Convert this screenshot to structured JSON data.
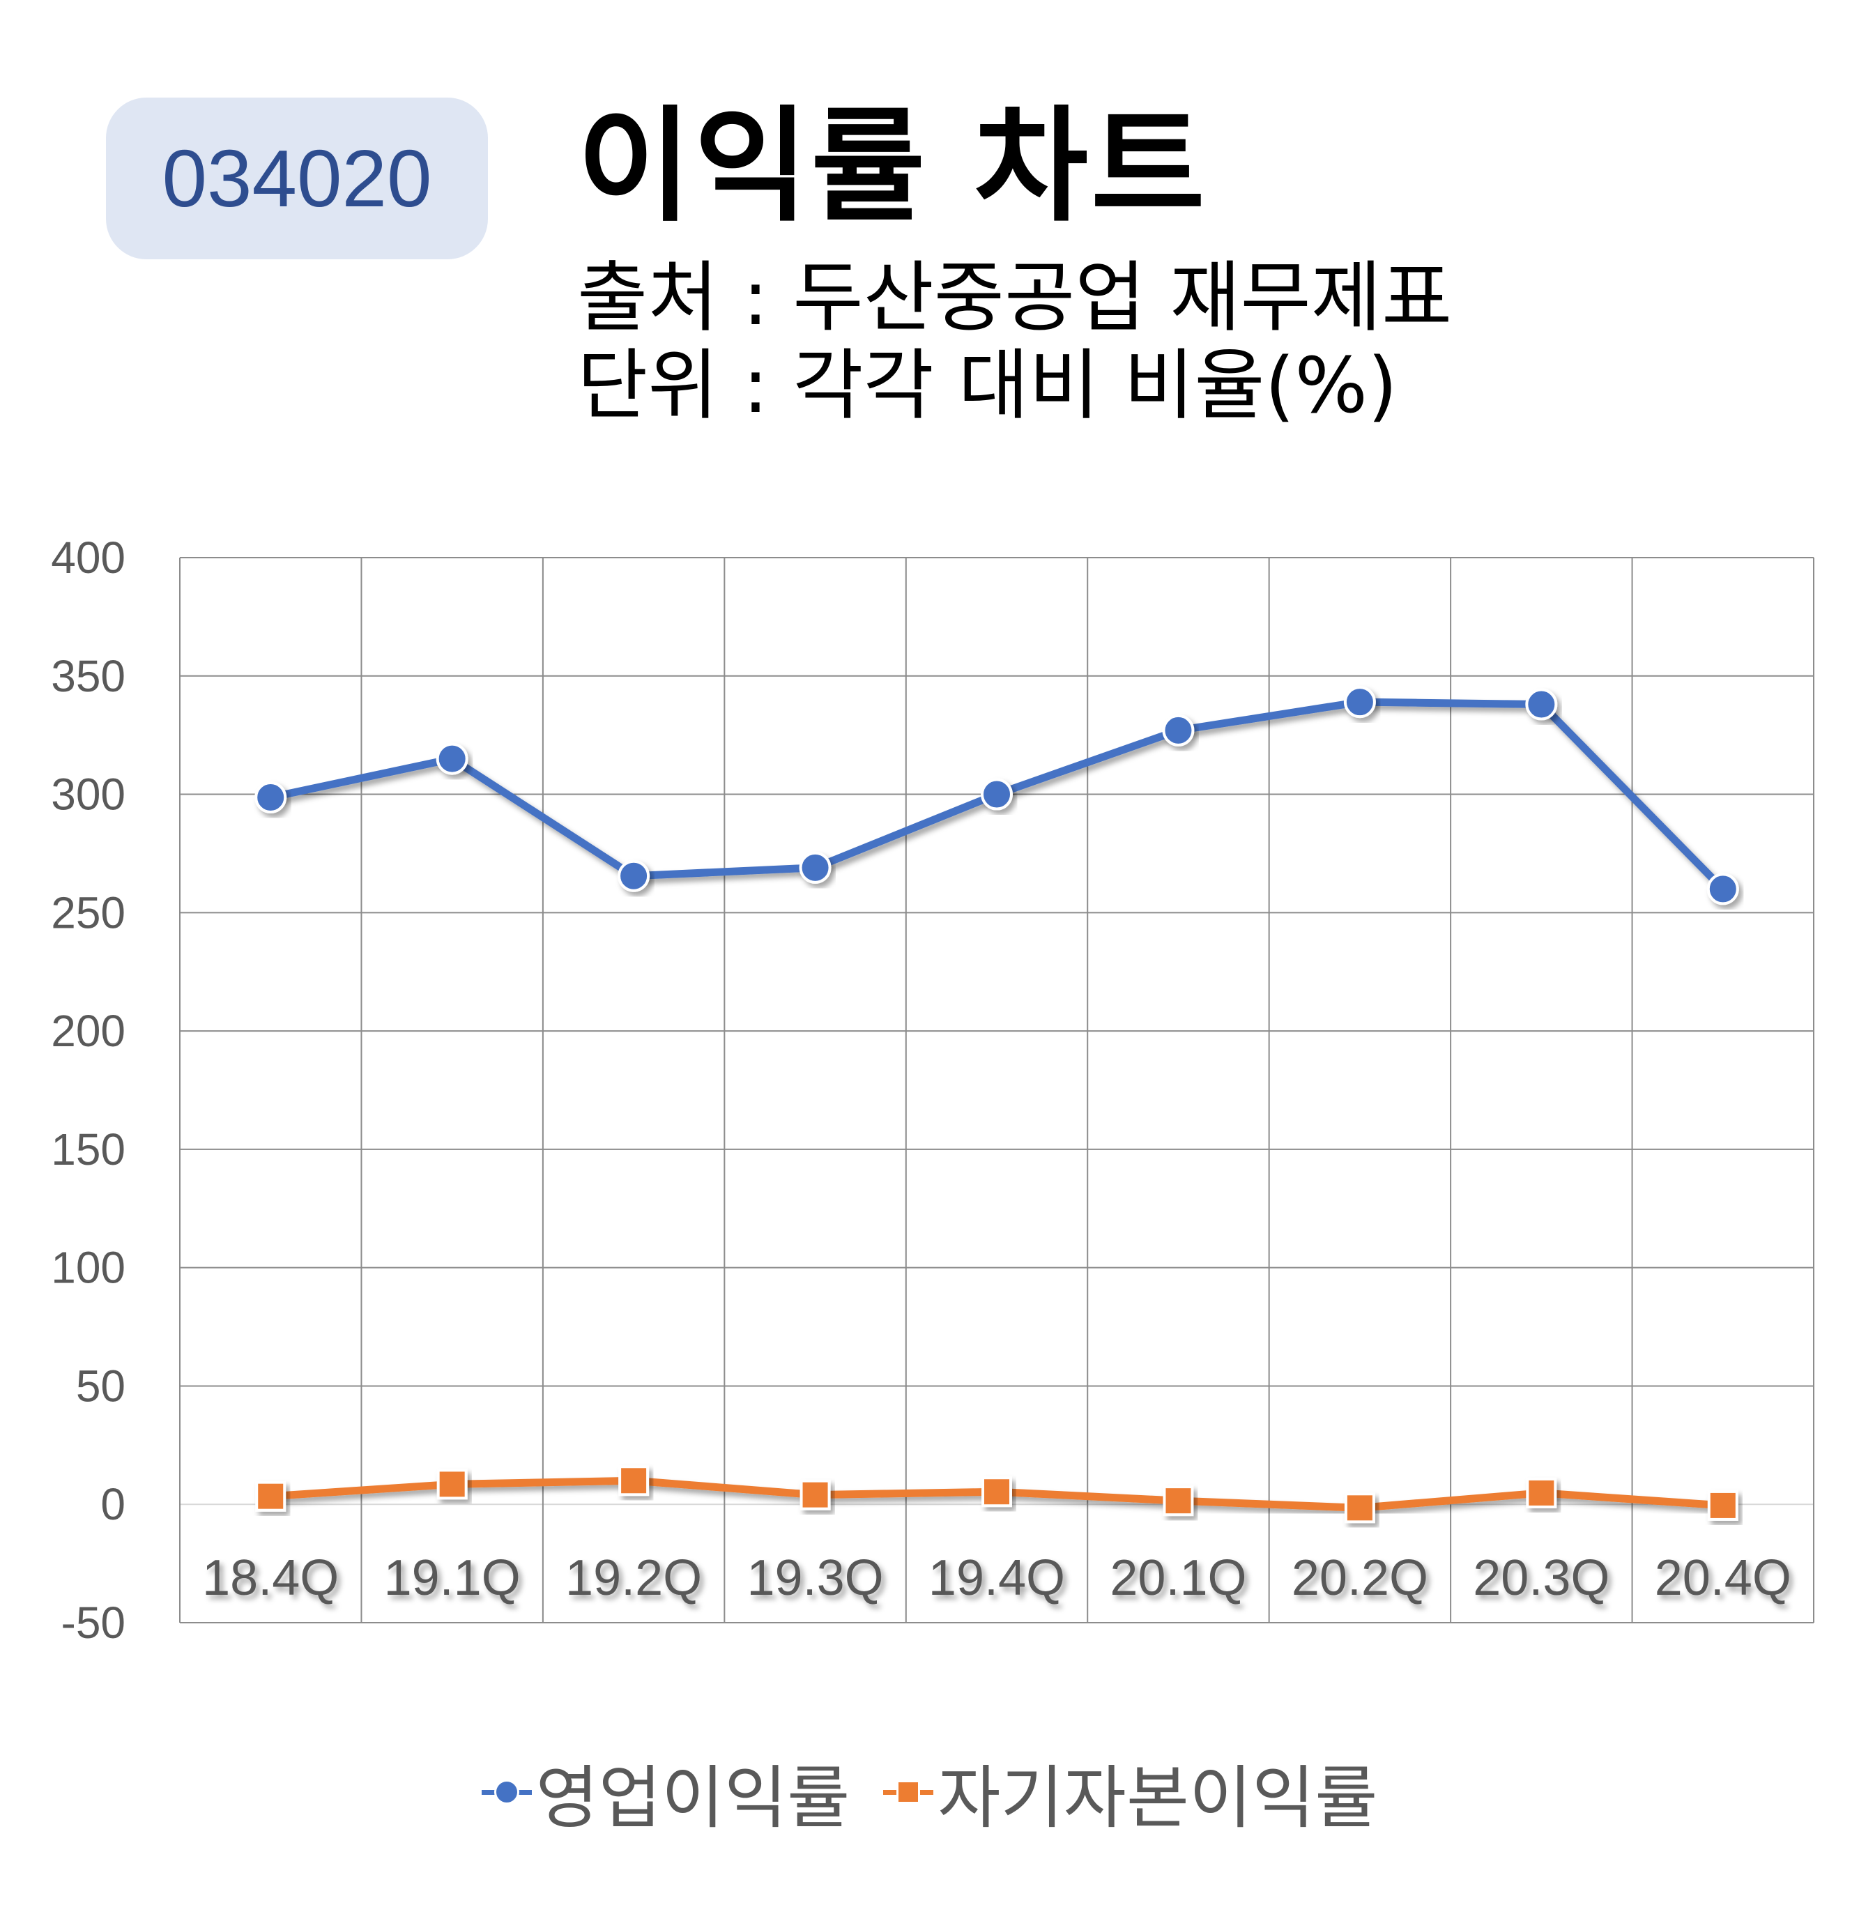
{
  "header": {
    "code": "034020",
    "title": "이익률 차트",
    "source": "출처 : 두산중공업 재무제표",
    "unit": "단위 : 각각 대비 비율(%)"
  },
  "colors": {
    "series1": "#4472c4",
    "series2": "#ed7d31",
    "badge_bg": "#dfe6f3",
    "badge_text": "#2e4d8f"
  },
  "chart_data": {
    "type": "line",
    "title": "이익률 차트",
    "categories": [
      "18.4Q",
      "19.1Q",
      "19.2Q",
      "19.3Q",
      "19.4Q",
      "20.1Q",
      "20.2Q",
      "20.3Q",
      "20.4Q"
    ],
    "series": [
      {
        "name": "영업이익률",
        "values": [
          298.7,
          315,
          265.5,
          269,
          300,
          327,
          339,
          338,
          260
        ],
        "marker": "circle"
      },
      {
        "name": "자기자본이익률",
        "values": [
          3.4,
          8.5,
          10,
          4,
          5.3,
          1.5,
          -1.5,
          4.8,
          -0.5
        ],
        "marker": "square"
      }
    ],
    "yticks": [
      400,
      350,
      300,
      250,
      200,
      150,
      100,
      50,
      0,
      -50
    ],
    "ylim": [
      -50,
      400
    ],
    "grid": true,
    "legend_position": "bottom"
  }
}
